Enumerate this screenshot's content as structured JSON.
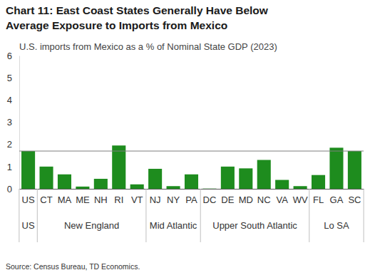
{
  "chart_data": {
    "type": "bar",
    "title": "Chart 11: East Coast States Generally Have Below Average Exposure to Imports from Mexico",
    "subtitle": "U.S. imports from Mexico as a % of Nominal State GDP (2023)",
    "source": "Source: Census Bureau, TD Economics.",
    "categories": [
      "US",
      "CT",
      "MA",
      "ME",
      "NH",
      "RI",
      "VT",
      "NJ",
      "NY",
      "PA",
      "DC",
      "DE",
      "MD",
      "NC",
      "VA",
      "WV",
      "FL",
      "GA",
      "SC"
    ],
    "values": [
      1.7,
      1.0,
      0.65,
      0.1,
      0.45,
      1.95,
      0.2,
      0.9,
      0.12,
      0.65,
      0.01,
      1.0,
      0.92,
      1.3,
      0.4,
      0.12,
      0.62,
      1.85,
      1.7
    ],
    "groups": [
      {
        "label": "US",
        "categories": [
          "US"
        ]
      },
      {
        "label": "New England",
        "categories": [
          "CT",
          "MA",
          "ME",
          "NH",
          "RI",
          "VT"
        ]
      },
      {
        "label": "Mid Atlantic",
        "categories": [
          "NJ",
          "NY",
          "PA"
        ]
      },
      {
        "label": "Upper South Atlantic",
        "categories": [
          "DC",
          "DE",
          "MD",
          "NC",
          "VA",
          "WV"
        ]
      },
      {
        "label": "Lo SA",
        "categories": [
          "FL",
          "GA",
          "SC"
        ]
      }
    ],
    "average_line": 1.7,
    "color": "#1e8c1e",
    "ylim": [
      0,
      6
    ],
    "yticks": [
      0,
      1,
      2,
      3,
      4,
      5,
      6
    ],
    "grid": false
  }
}
